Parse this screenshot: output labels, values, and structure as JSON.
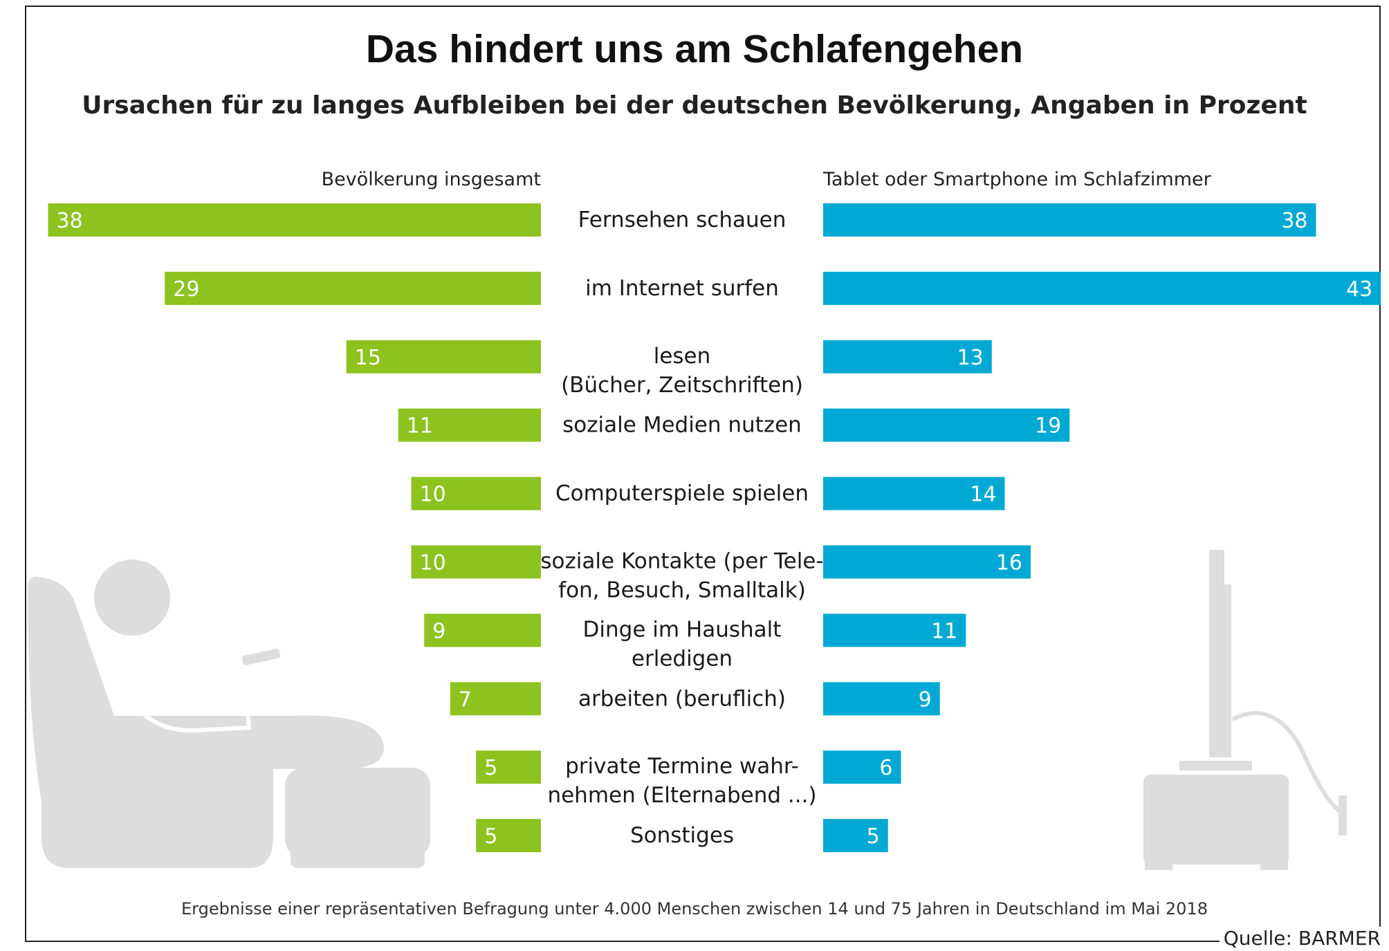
{
  "chart_data": {
    "type": "bar",
    "title": "Das hindert uns am Schlafengehen",
    "subtitle": "Ursachen für zu langes Aufbleiben bei der deutschen Bevölkerung, Angaben in Prozent",
    "categories": [
      "Fernsehen schauen",
      "im Internet surfen",
      "lesen (Bücher, Zeitschriften)",
      "soziale Medien nutzen",
      "Computerspiele spielen",
      "soziale Kontakte (per Tele-fon, Besuch, Smalltalk)",
      "Dinge im Haushalt erledigen",
      "arbeiten (beruflich)",
      "private Termine wahr-nehmen (Elternabend ...)",
      "Sonstiges"
    ],
    "category_lines": [
      [
        "Fernsehen schauen"
      ],
      [
        "im Internet surfen"
      ],
      [
        "lesen",
        "(Bücher, Zeitschriften)"
      ],
      [
        "soziale Medien nutzen"
      ],
      [
        "Computerspiele spielen"
      ],
      [
        "soziale Kontakte (per Tele-",
        "fon, Besuch, Smalltalk)"
      ],
      [
        "Dinge im Haushalt",
        "erledigen"
      ],
      [
        "arbeiten (beruflich)"
      ],
      [
        "private Termine wahr-",
        "nehmen (Elternabend ...)"
      ],
      [
        "Sonstiges"
      ]
    ],
    "series": [
      {
        "name": "Bevölkerung insgesamt",
        "color": "#8dc21f",
        "values": [
          38,
          29,
          15,
          11,
          10,
          10,
          9,
          7,
          5,
          5
        ]
      },
      {
        "name": "Tablet oder Smartphone im Schlafzimmer",
        "color": "#00a9d4",
        "values": [
          38,
          43,
          13,
          19,
          14,
          16,
          11,
          9,
          6,
          5
        ]
      }
    ],
    "xlim": [
      0,
      43
    ],
    "layout": "butterfly"
  },
  "footnote": "Ergebnisse einer repräsentativen Befragung unter 4.000 Menschen zwischen 14 und 75 Jahren in Deutschland im Mai 2018",
  "source": "Quelle: BARMER",
  "colors": {
    "illustration": "#dddddd",
    "label_on_bar": "#ffffff"
  },
  "icons": [
    "person-in-armchair-with-remote-icon",
    "footstool-icon",
    "tv-on-stand-icon"
  ]
}
